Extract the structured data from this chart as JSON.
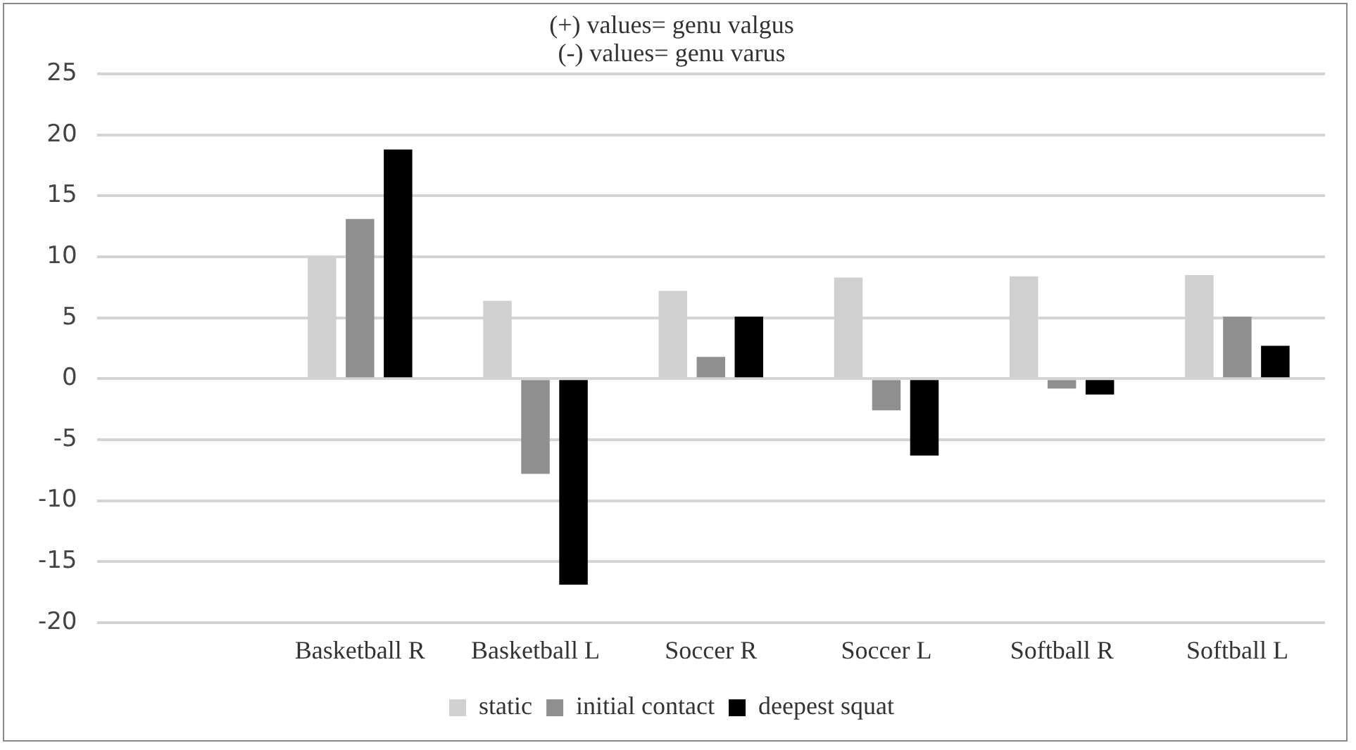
{
  "chart_data": {
    "type": "bar",
    "title": "(+) values= genu valgus",
    "subtitle": "(-) values= genu varus",
    "categories": [
      null,
      "Basketball R",
      "Basketball L",
      "Soccer R",
      "Soccer L",
      "Softball R",
      "Softball L"
    ],
    "series": [
      {
        "name": "static",
        "color": "#d0d0d0",
        "values": [
          null,
          10.0,
          6.4,
          7.2,
          8.3,
          8.4,
          8.5
        ]
      },
      {
        "name": "initial contact",
        "color": "#8f8f8f",
        "values": [
          null,
          13.1,
          -7.8,
          1.8,
          -2.6,
          -0.8,
          5.1
        ]
      },
      {
        "name": "deepest squat",
        "color": "#000000",
        "values": [
          null,
          18.8,
          -16.9,
          5.1,
          -6.3,
          -1.3,
          2.7
        ]
      }
    ],
    "ylim": [
      -20,
      25
    ],
    "yticks": [
      -20,
      -15,
      -10,
      -5,
      0,
      5,
      10,
      15,
      20,
      25
    ],
    "grid": "y",
    "legend": "bottom"
  }
}
